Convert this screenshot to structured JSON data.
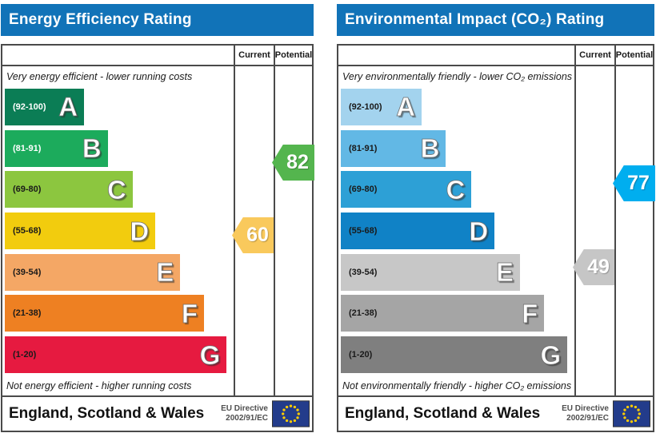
{
  "theme": {
    "header_blue": "#1173b8",
    "border_gray": "#4a4a4a",
    "eu_flag_blue": "#233c8b",
    "eu_star_yellow": "#ffcc00"
  },
  "panels": [
    {
      "title": "Energy Efficiency Rating",
      "current_label": "Current",
      "potential_label": "Potential",
      "top_caption": "Very energy efficient - lower running costs",
      "bottom_caption": "Not energy efficient - higher running costs",
      "bands": [
        {
          "letter": "A",
          "range": "(92-100)",
          "color": "#0b7d55",
          "width_pct": 35,
          "label_color": "#ffffff"
        },
        {
          "letter": "B",
          "range": "(81-91)",
          "color": "#1cab5c",
          "width_pct": 45.5,
          "label_color": "#ffffff"
        },
        {
          "letter": "C",
          "range": "(69-80)",
          "color": "#8cc63f",
          "width_pct": 56.5,
          "label_color": "#1a1a1a"
        },
        {
          "letter": "D",
          "range": "(55-68)",
          "color": "#f2cc0e",
          "width_pct": 66.5,
          "label_color": "#1a1a1a"
        },
        {
          "letter": "E",
          "range": "(39-54)",
          "color": "#f4a765",
          "width_pct": 77.5,
          "label_color": "#1a1a1a"
        },
        {
          "letter": "F",
          "range": "(21-38)",
          "color": "#ee8022",
          "width_pct": 88,
          "label_color": "#1a1a1a"
        },
        {
          "letter": "G",
          "range": "(1-20)",
          "color": "#e61a40",
          "width_pct": 98,
          "label_color": "#1a1a1a"
        }
      ],
      "current": {
        "value": "60",
        "color": "#f9c95c"
      },
      "potential": {
        "value": "82",
        "color": "#54b54e"
      },
      "footer_region": "England, Scotland & Wales",
      "directive_line1": "EU Directive",
      "directive_line2": "2002/91/EC"
    },
    {
      "title": "Environmental Impact (CO₂) Rating",
      "current_label": "Current",
      "potential_label": "Potential",
      "top_caption": "Very environmentally friendly - lower CO₂ emissions",
      "bottom_caption": "Not environmentally friendly - higher CO₂ emissions",
      "bands": [
        {
          "letter": "A",
          "range": "(92-100)",
          "color": "#a3d3ee",
          "width_pct": 35,
          "label_color": "#1a1a1a"
        },
        {
          "letter": "B",
          "range": "(81-91)",
          "color": "#62b8e5",
          "width_pct": 45.5,
          "label_color": "#1a1a1a"
        },
        {
          "letter": "C",
          "range": "(69-80)",
          "color": "#2da0d6",
          "width_pct": 56.5,
          "label_color": "#1a1a1a"
        },
        {
          "letter": "D",
          "range": "(55-68)",
          "color": "#1082c6",
          "width_pct": 66.5,
          "label_color": "#1a1a1a"
        },
        {
          "letter": "E",
          "range": "(39-54)",
          "color": "#c7c7c7",
          "width_pct": 77.5,
          "label_color": "#1a1a1a"
        },
        {
          "letter": "F",
          "range": "(21-38)",
          "color": "#a5a5a5",
          "width_pct": 88,
          "label_color": "#1a1a1a"
        },
        {
          "letter": "G",
          "range": "(1-20)",
          "color": "#7f7f7f",
          "width_pct": 98,
          "label_color": "#1a1a1a"
        }
      ],
      "current": {
        "value": "49",
        "color": "#c6c6c6"
      },
      "potential": {
        "value": "77",
        "color": "#00aeef"
      },
      "footer_region": "England, Scotland & Wales",
      "directive_line1": "EU Directive",
      "directive_line2": "2002/91/EC"
    }
  ],
  "chart_data": [
    {
      "type": "bar",
      "title": "Energy Efficiency Rating",
      "categories": [
        "A (92-100)",
        "B (81-91)",
        "C (69-80)",
        "D (55-68)",
        "E (39-54)",
        "F (21-38)",
        "G (1-20)"
      ],
      "values": [
        35,
        45.5,
        56.5,
        66.5,
        77.5,
        88,
        98
      ],
      "series": [
        {
          "name": "Current",
          "values": [
            60
          ]
        },
        {
          "name": "Potential",
          "values": [
            82
          ]
        }
      ],
      "current_rating": 60,
      "current_band": "D",
      "potential_rating": 82,
      "potential_band": "B",
      "xlabel": "",
      "ylabel": "",
      "annotations": [
        "Very energy efficient - lower running costs",
        "Not energy efficient - higher running costs",
        "England, Scotland & Wales",
        "EU Directive 2002/91/EC"
      ]
    },
    {
      "type": "bar",
      "title": "Environmental Impact (CO₂) Rating",
      "categories": [
        "A (92-100)",
        "B (81-91)",
        "C (69-80)",
        "D (55-68)",
        "E (39-54)",
        "F (21-38)",
        "G (1-20)"
      ],
      "values": [
        35,
        45.5,
        56.5,
        66.5,
        77.5,
        88,
        98
      ],
      "series": [
        {
          "name": "Current",
          "values": [
            49
          ]
        },
        {
          "name": "Potential",
          "values": [
            77
          ]
        }
      ],
      "current_rating": 49,
      "current_band": "E",
      "potential_rating": 77,
      "potential_band": "C",
      "xlabel": "",
      "ylabel": "",
      "annotations": [
        "Very environmentally friendly - lower CO₂ emissions",
        "Not environmentally friendly - higher CO₂ emissions",
        "England, Scotland & Wales",
        "EU Directive 2002/91/EC"
      ]
    }
  ]
}
